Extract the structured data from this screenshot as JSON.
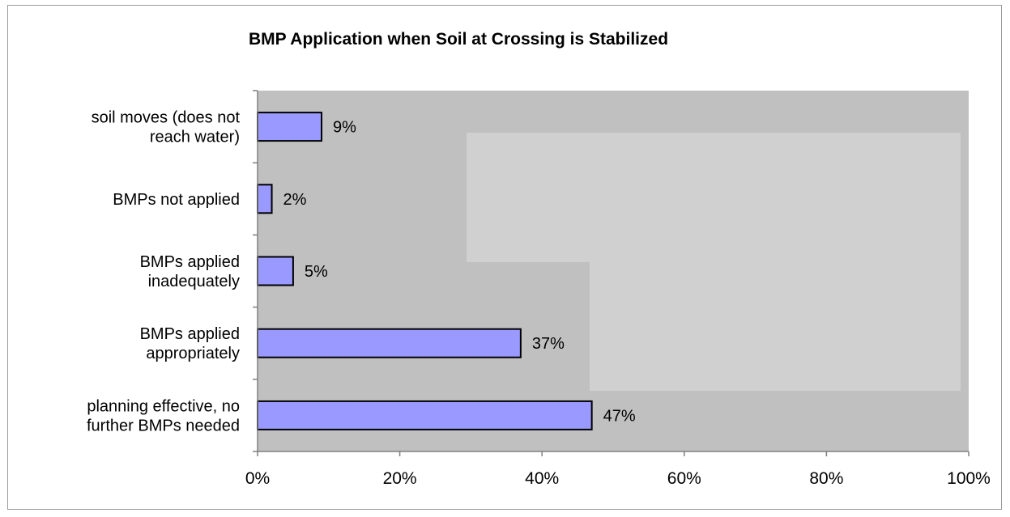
{
  "chart_data": {
    "type": "bar",
    "orientation": "horizontal",
    "title": "BMP Application when Soil at Crossing is Stabilized",
    "categories": [
      [
        "soil moves (does not",
        "reach water)"
      ],
      [
        "BMPs not applied"
      ],
      [
        "BMPs applied",
        "inadequately"
      ],
      [
        "BMPs applied",
        "appropriately"
      ],
      [
        "planning effective, no",
        "further BMPs needed"
      ]
    ],
    "values": [
      9,
      2,
      5,
      37,
      47
    ],
    "data_labels": [
      "9%",
      "2%",
      "5%",
      "37%",
      "47%"
    ],
    "xlim": [
      0,
      100
    ],
    "x_ticks": [
      0,
      20,
      40,
      60,
      80,
      100
    ],
    "x_tick_labels": [
      "0%",
      "20%",
      "40%",
      "60%",
      "80%",
      "100%"
    ],
    "xlabel": "",
    "ylabel": "",
    "grid": false,
    "legend": "none",
    "colors": {
      "bar_fill": "#9999ff",
      "bar_stroke": "#000000",
      "plot_background": "#c0c0c0",
      "plot_highlight": "#d0d0d0",
      "axis": "#808080"
    }
  }
}
